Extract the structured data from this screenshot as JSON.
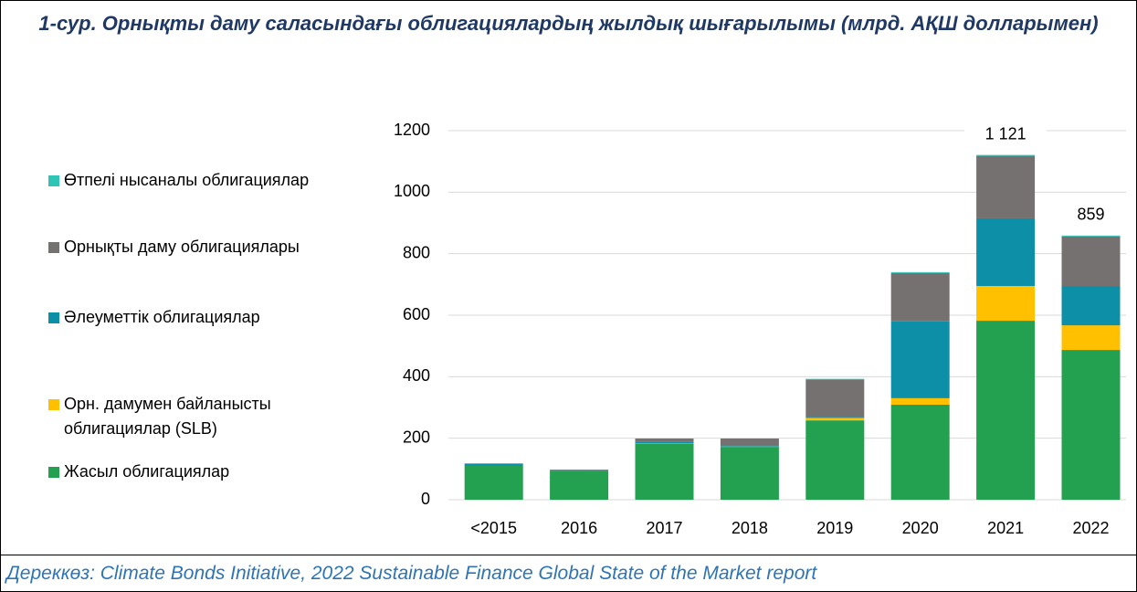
{
  "chart_data": {
    "type": "stacked_bar",
    "title": "1-сур. Орнықты даму саласындағы облигациялардың жылдық шығарылымы (млрд. АҚШ долларымен)",
    "source": "Дереккөз: Climate Bonds Initiative, 2022 Sustainable Finance Global State of the Market report",
    "categories": [
      "<2015",
      "2016",
      "2017",
      "2018",
      "2019",
      "2020",
      "2021",
      "2022"
    ],
    "series": [
      {
        "name": "Жасыл облигациялар",
        "color": "#23a050",
        "values": [
          110,
          93,
          183,
          172,
          258,
          309,
          582,
          487
        ]
      },
      {
        "name": "Орн. дамумен байланысты облигациялар (SLB)",
        "color": "#ffc000",
        "values": [
          0,
          0,
          1,
          1,
          8,
          21,
          113,
          80
        ]
      },
      {
        "name": "Әлеуметтік облигациялар",
        "color": "#0e8fa8",
        "values": [
          6,
          3,
          5,
          5,
          3,
          250,
          220,
          128
        ]
      },
      {
        "name": "Орнықты даму облигациялары",
        "color": "#767171",
        "values": [
          2,
          2,
          10,
          21,
          122,
          157,
          203,
          161
        ]
      },
      {
        "name": "Өтпелі нысаналы облигациялар",
        "color": "#2ec4b6",
        "values": [
          0,
          0,
          0,
          0,
          2,
          3,
          3,
          3
        ]
      }
    ],
    "totals": [
      null,
      null,
      null,
      null,
      null,
      null,
      1121,
      859
    ],
    "total_labels": [
      null,
      null,
      null,
      null,
      null,
      null,
      "1 121",
      "859"
    ],
    "ylim": [
      0,
      1200
    ],
    "yticks": [
      0,
      200,
      400,
      600,
      800,
      1000,
      1200
    ],
    "grid": true
  }
}
